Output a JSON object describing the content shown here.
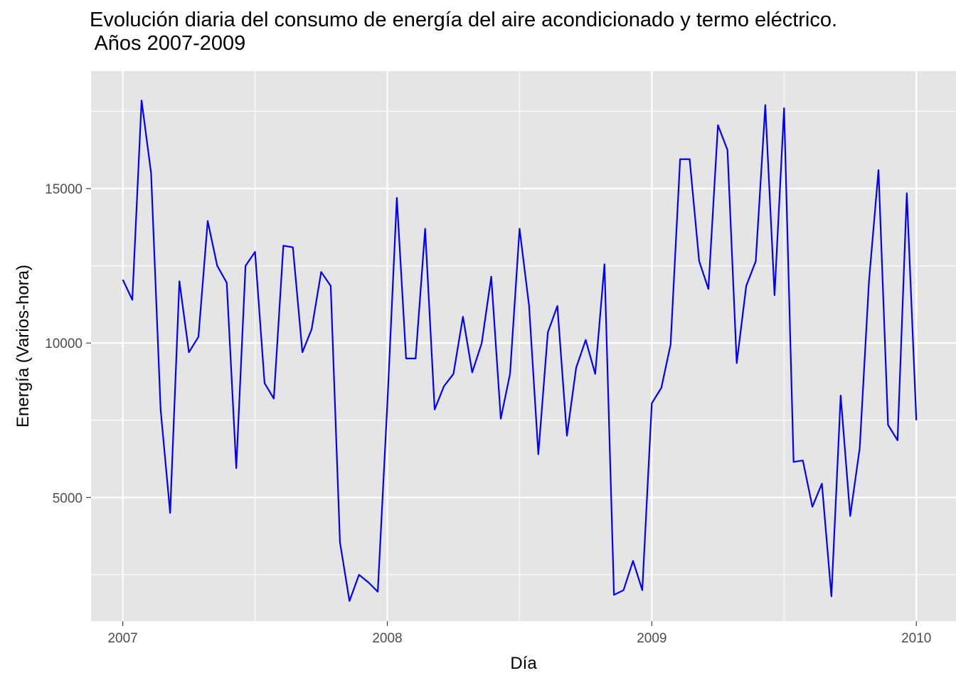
{
  "chart_data": {
    "type": "line",
    "title": "Evolución diaria del consumo de energía del aire acondicionado y termo eléctrico.\n Años 2007-2009",
    "xlabel": "Día",
    "ylabel": "Energía (Varios-hora)",
    "xlim": [
      2006.88,
      2010.15
    ],
    "ylim": [
      1000,
      18800
    ],
    "x_ticks": [
      2007,
      2008,
      2009,
      2010
    ],
    "x_tick_labels": [
      "2007",
      "2008",
      "2009",
      "2010"
    ],
    "y_ticks": [
      5000,
      10000,
      15000
    ],
    "y_tick_labels": [
      "5000",
      "10000",
      "15000"
    ],
    "grid": true,
    "legend": "none",
    "series": [
      {
        "color": "#0000ff",
        "x": [
          2007.0,
          2007.036,
          2007.071,
          2007.107,
          2007.143,
          2007.179,
          2007.214,
          2007.25,
          2007.286,
          2007.321,
          2007.357,
          2007.393,
          2007.429,
          2007.464,
          2007.5,
          2007.536,
          2007.571,
          2007.607,
          2007.643,
          2007.679,
          2007.714,
          2007.75,
          2007.786,
          2007.821,
          2007.857,
          2007.893,
          2007.929,
          2007.964,
          2008.0,
          2008.036,
          2008.071,
          2008.107,
          2008.143,
          2008.179,
          2008.214,
          2008.25,
          2008.286,
          2008.321,
          2008.357,
          2008.393,
          2008.429,
          2008.464,
          2008.5,
          2008.536,
          2008.571,
          2008.607,
          2008.643,
          2008.679,
          2008.714,
          2008.75,
          2008.786,
          2008.821,
          2008.857,
          2008.893,
          2008.929,
          2008.964,
          2009.0,
          2009.036,
          2009.071,
          2009.107,
          2009.143,
          2009.179,
          2009.214,
          2009.25,
          2009.286,
          2009.321,
          2009.357,
          2009.393,
          2009.429,
          2009.464,
          2009.5,
          2009.536,
          2009.571,
          2009.607,
          2009.643,
          2009.679,
          2009.714,
          2009.75,
          2009.786,
          2009.821,
          2009.857,
          2009.893,
          2009.929,
          2009.964,
          2010.0
        ],
        "y": [
          12050,
          11400,
          17850,
          15500,
          7850,
          4500,
          12000,
          9700,
          10200,
          13950,
          12500,
          11950,
          5950,
          12500,
          12950,
          8700,
          8200,
          13150,
          13100,
          9700,
          10450,
          12300,
          11850,
          3550,
          1650,
          2500,
          2250,
          1950,
          8000,
          14700,
          9500,
          9500,
          13700,
          7850,
          8600,
          9000,
          10850,
          9050,
          10000,
          12150,
          7550,
          9000,
          13700,
          11200,
          6400,
          10350,
          11200,
          7000,
          9200,
          10100,
          9000,
          12550,
          1850,
          2000,
          2950,
          2000,
          8050,
          8550,
          9950,
          15950,
          15950,
          12650,
          11750,
          17050,
          16250,
          9350,
          11850,
          12650,
          17700,
          11550,
          17600,
          6150,
          6200,
          4700,
          5450,
          1800,
          8300,
          4400,
          6600,
          12000,
          15600,
          7350,
          6850,
          14850,
          7500
        ]
      }
    ]
  }
}
